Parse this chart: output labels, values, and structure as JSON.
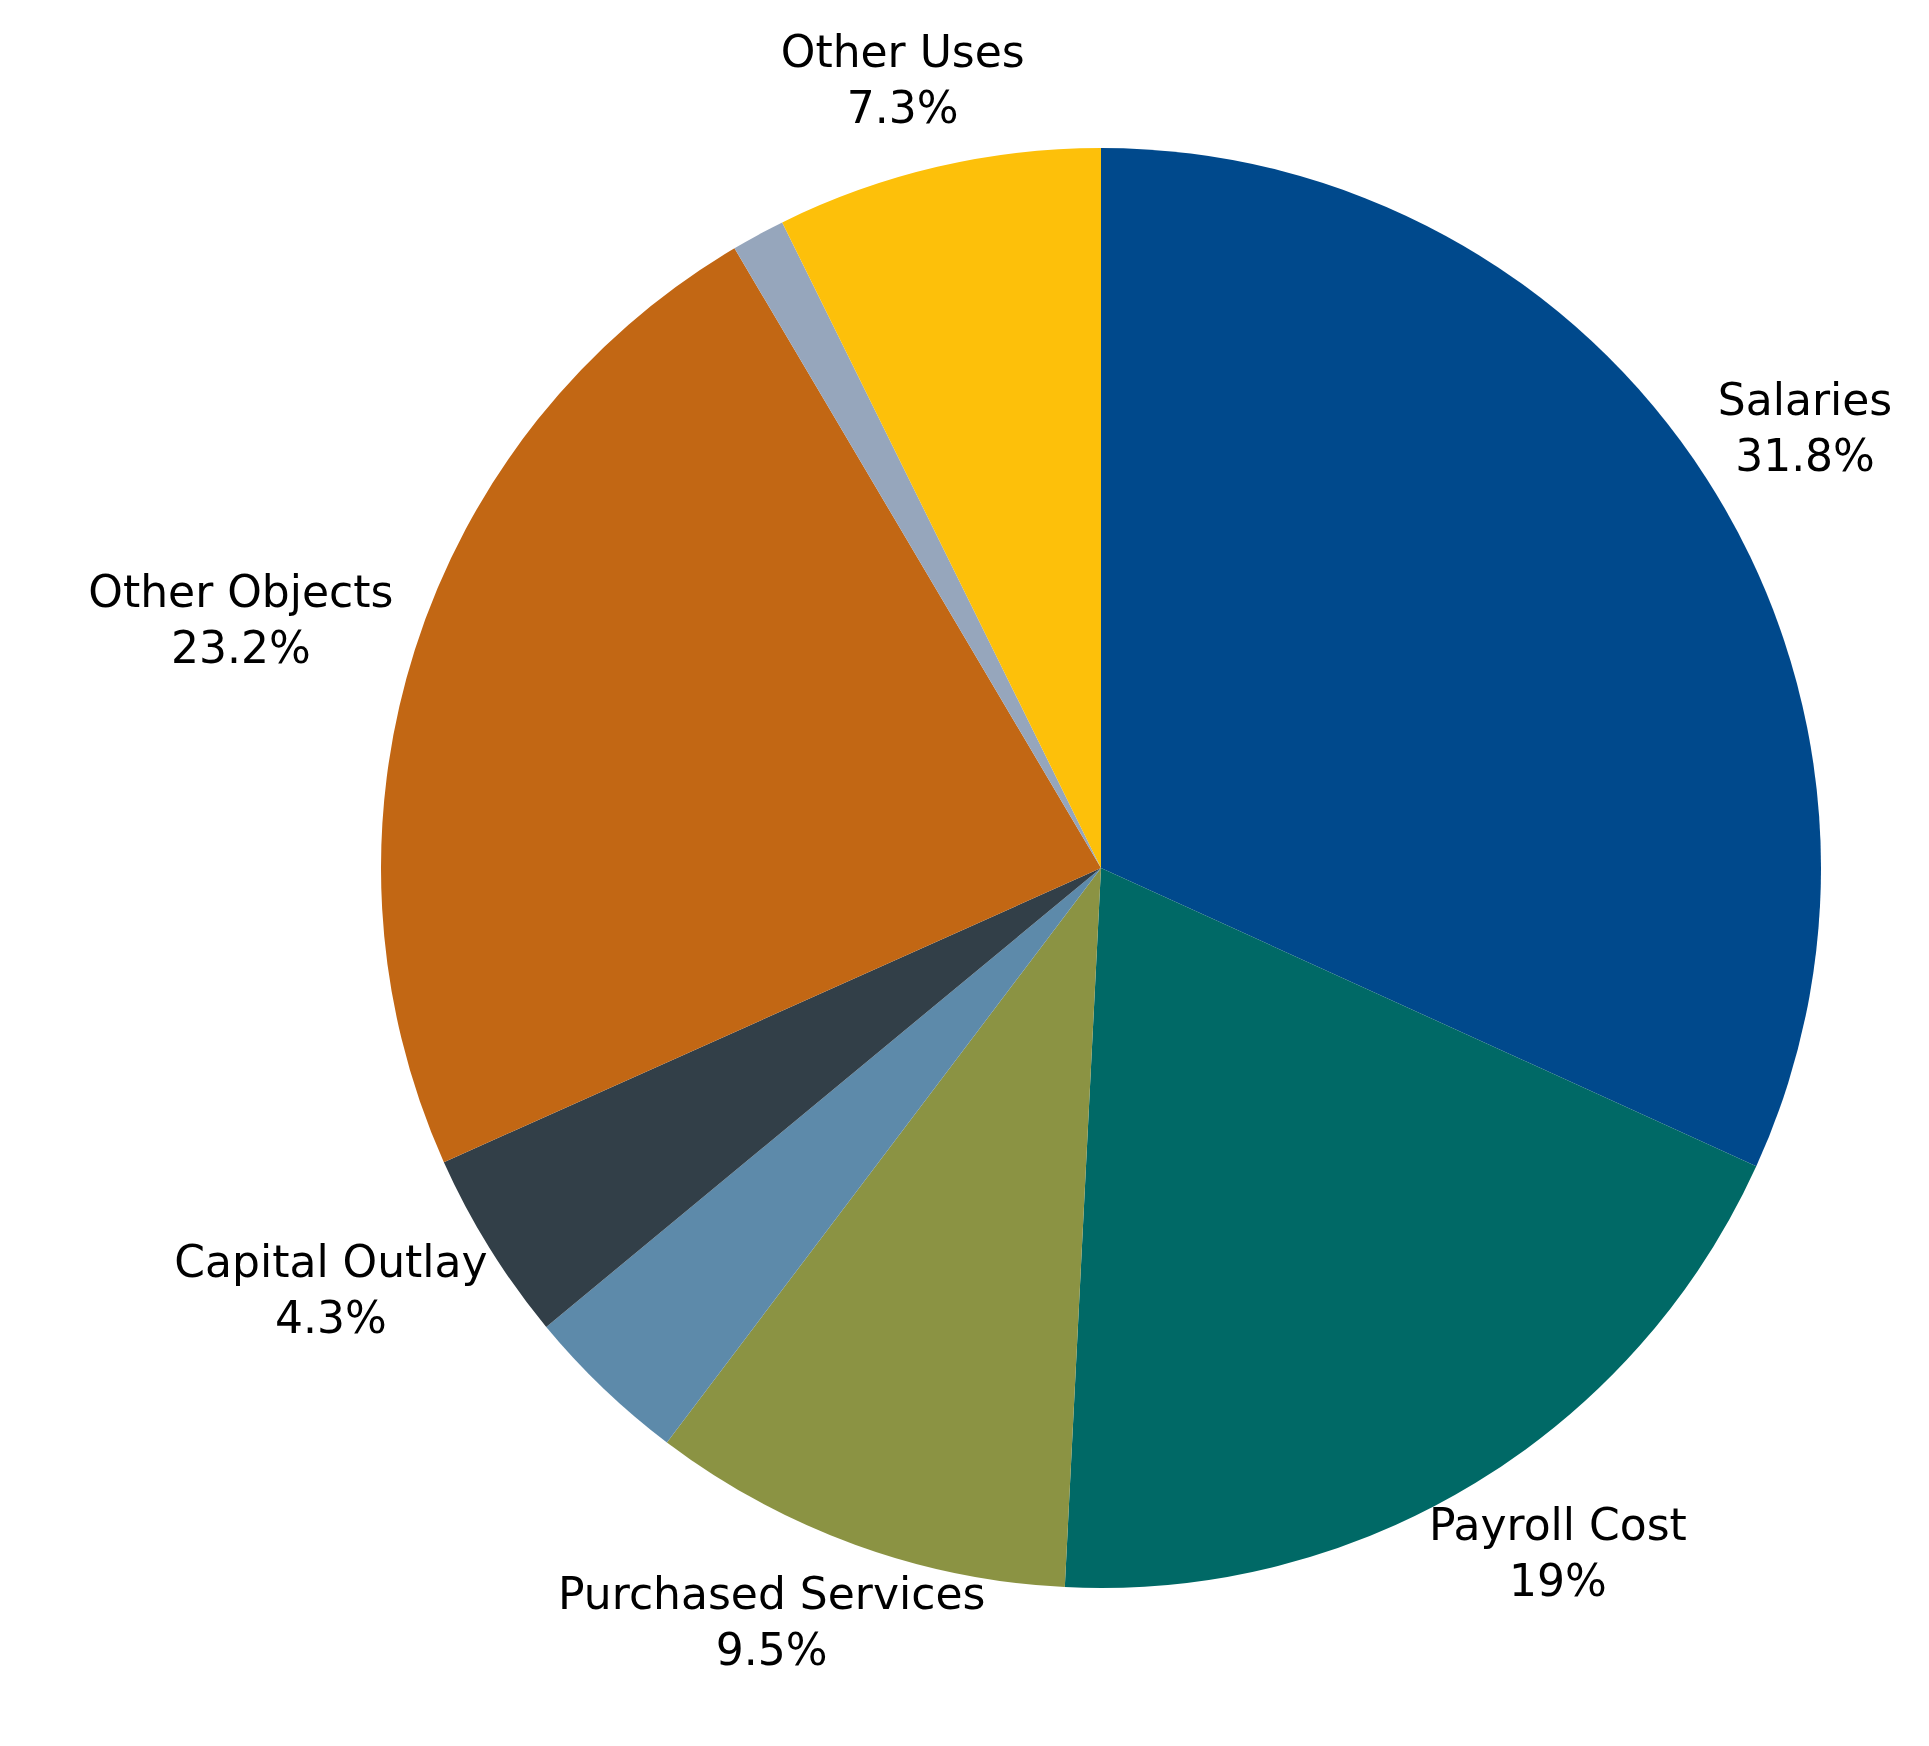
{
  "chart_data": {
    "type": "pie",
    "categories": [
      "Salaries",
      "Payroll Cost",
      "Purchased Services",
      null,
      "Capital Outlay",
      "Other Objects",
      null,
      "Other Uses"
    ],
    "values": [
      31.8,
      19,
      9.5,
      3.7,
      4.3,
      23.2,
      1.2,
      7.3
    ],
    "value_labels": [
      "31.8%",
      "19%",
      "9.5%",
      null,
      "4.3%",
      "23.2%",
      null,
      "7.3%"
    ],
    "colors": [
      "#00498c",
      "#006966",
      "#8b9343",
      "#5d8aaa",
      "#323f48",
      "#c26714",
      "#96a6bc",
      "#fdc00a"
    ],
    "legend": false
  }
}
